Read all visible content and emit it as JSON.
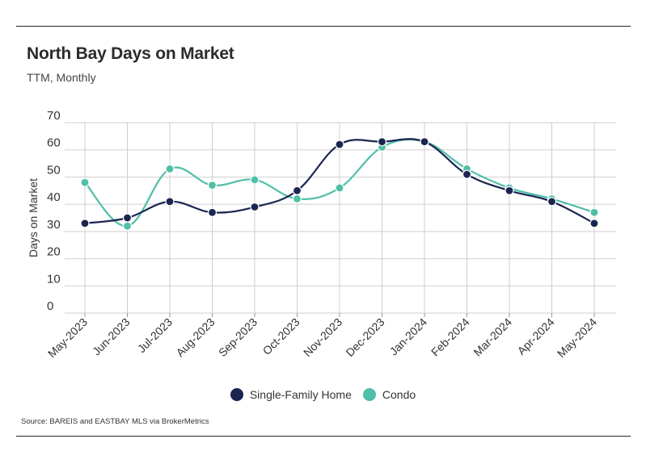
{
  "title": "North Bay Days on Market",
  "subtitle": "TTM, Monthly",
  "source": "Source:  BAREIS and EASTBAY MLS via BrokerMetrics",
  "chart_data": {
    "type": "line",
    "title": "North Bay Days on Market",
    "subtitle": "TTM, Monthly",
    "ylabel": "Days on Market",
    "xlabel": "",
    "ylim": [
      0,
      70
    ],
    "yticks": [
      0,
      10,
      20,
      30,
      40,
      50,
      60,
      70
    ],
    "grid": true,
    "legend_position": "bottom",
    "categories": [
      "May-2023",
      "Jun-2023",
      "Jul-2023",
      "Aug-2023",
      "Sep-2023",
      "Oct-2023",
      "Nov-2023",
      "Dec-2023",
      "Jan-2024",
      "Feb-2024",
      "Mar-2024",
      "Apr-2024",
      "May-2024"
    ],
    "series": [
      {
        "name": "Single-Family Home",
        "color": "#1b2550",
        "values": [
          33,
          35,
          41,
          37,
          39,
          45,
          62,
          63,
          63,
          51,
          45,
          41,
          33
        ]
      },
      {
        "name": "Condo",
        "color": "#4fbfa8",
        "values": [
          48,
          32,
          53,
          47,
          49,
          42,
          46,
          61,
          63,
          53,
          46,
          42,
          37
        ]
      }
    ]
  }
}
